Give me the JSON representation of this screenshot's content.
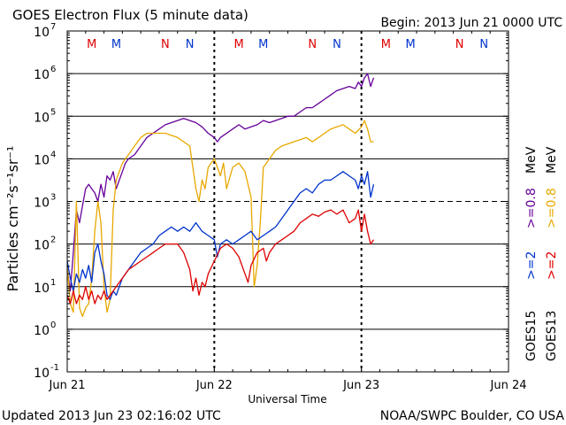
{
  "chart_data": {
    "type": "line",
    "title": "GOES Electron Flux (5 minute data)",
    "begin_label": "Begin: 2013 Jun 21 0000 UTC",
    "xlabel": "Universal Time",
    "ylabel": "Particles cm⁻²s⁻¹sr⁻¹",
    "y_scale": "log",
    "ylim": [
      -1,
      7
    ],
    "x_unit": "hours since 2013 Jun 21 00:00 UTC",
    "xlim": [
      0,
      72
    ],
    "x_ticks": [
      {
        "value": 0,
        "label": "Jun 21"
      },
      {
        "value": 24,
        "label": "Jun 22"
      },
      {
        "value": 48,
        "label": "Jun 23"
      },
      {
        "value": 72,
        "label": "Jun 24"
      }
    ],
    "y_ticks": [
      {
        "exp": 7,
        "label": "10",
        "sup": "7"
      },
      {
        "exp": 6,
        "label": "10",
        "sup": "6"
      },
      {
        "exp": 5,
        "label": "10",
        "sup": "5"
      },
      {
        "exp": 4,
        "label": "10",
        "sup": "4"
      },
      {
        "exp": 3,
        "label": "10",
        "sup": "3"
      },
      {
        "exp": 2,
        "label": "10",
        "sup": "2"
      },
      {
        "exp": 1,
        "label": "10",
        "sup": "1"
      },
      {
        "exp": 0,
        "label": "10",
        "sup": "0"
      },
      {
        "exp": -1,
        "label": "10",
        "sup": "-1"
      }
    ],
    "threshold_exp": 3,
    "markers": [
      {
        "hour": 4.0,
        "label": "M",
        "color": "#dd0000"
      },
      {
        "hour": 8.0,
        "label": "M",
        "color": "#0033cc"
      },
      {
        "hour": 16.0,
        "label": "N",
        "color": "#dd0000"
      },
      {
        "hour": 20.0,
        "label": "N",
        "color": "#0033cc"
      },
      {
        "hour": 28.0,
        "label": "M",
        "color": "#dd0000"
      },
      {
        "hour": 32.0,
        "label": "M",
        "color": "#0033cc"
      },
      {
        "hour": 40.0,
        "label": "N",
        "color": "#dd0000"
      },
      {
        "hour": 44.0,
        "label": "N",
        "color": "#0033cc"
      },
      {
        "hour": 52.0,
        "label": "M",
        "color": "#dd0000"
      },
      {
        "hour": 56.0,
        "label": "M",
        "color": "#0033cc"
      },
      {
        "hour": 64.0,
        "label": "N",
        "color": "#dd0000"
      },
      {
        "hour": 68.0,
        "label": "N",
        "color": "#0033cc"
      }
    ],
    "right_legend": {
      "goes15": "GOES15",
      "goes13": "GOES13",
      "g15_ge2": ">=2",
      "g15_ge08": ">=0.8",
      "g13_ge2": ">=2",
      "g13_ge08": ">=0.8",
      "mev1": "MeV",
      "mev2": "MeV"
    },
    "series": [
      {
        "name": "GOES15 >=0.8 MeV",
        "color": "#660099",
        "points": [
          [
            0,
            1.4
          ],
          [
            0.5,
            0.9
          ],
          [
            1,
            1.8
          ],
          [
            1.5,
            2.8
          ],
          [
            2,
            2.5
          ],
          [
            2.5,
            2.9
          ],
          [
            3,
            3.3
          ],
          [
            3.5,
            3.4
          ],
          [
            4,
            3.3
          ],
          [
            4.5,
            3.2
          ],
          [
            5,
            3.0
          ],
          [
            5.5,
            3.4
          ],
          [
            6,
            3.1
          ],
          [
            6.5,
            3.6
          ],
          [
            7,
            3.5
          ],
          [
            7.5,
            3.7
          ],
          [
            8,
            3.3
          ],
          [
            8.5,
            3.5
          ],
          [
            9,
            3.7
          ],
          [
            9.5,
            3.9
          ],
          [
            10,
            4.0
          ],
          [
            11,
            4.1
          ],
          [
            12,
            4.3
          ],
          [
            13,
            4.5
          ],
          [
            14,
            4.6
          ],
          [
            15,
            4.7
          ],
          [
            16,
            4.8
          ],
          [
            17,
            4.85
          ],
          [
            18,
            4.9
          ],
          [
            19,
            4.95
          ],
          [
            20,
            4.9
          ],
          [
            21,
            4.85
          ],
          [
            22,
            4.75
          ],
          [
            23,
            4.6
          ],
          [
            24,
            4.5
          ],
          [
            24.5,
            4.4
          ],
          [
            25,
            4.5
          ],
          [
            26,
            4.6
          ],
          [
            27,
            4.7
          ],
          [
            28,
            4.8
          ],
          [
            29,
            4.7
          ],
          [
            30,
            4.75
          ],
          [
            31,
            4.8
          ],
          [
            32,
            4.9
          ],
          [
            33,
            4.85
          ],
          [
            34,
            4.9
          ],
          [
            35,
            4.95
          ],
          [
            36,
            5.0
          ],
          [
            37,
            5.0
          ],
          [
            38,
            5.1
          ],
          [
            39,
            5.2
          ],
          [
            40,
            5.2
          ],
          [
            41,
            5.3
          ],
          [
            42,
            5.4
          ],
          [
            43,
            5.5
          ],
          [
            44,
            5.6
          ],
          [
            45,
            5.65
          ],
          [
            46,
            5.7
          ],
          [
            47,
            5.65
          ],
          [
            47.5,
            5.8
          ],
          [
            48,
            5.7
          ],
          [
            48.5,
            5.9
          ],
          [
            49,
            6.0
          ],
          [
            49.5,
            5.7
          ],
          [
            50,
            5.9
          ]
        ]
      },
      {
        "name": "GOES13 >=0.8 MeV",
        "color": "#e8a800",
        "points": [
          [
            0,
            1.5
          ],
          [
            0.5,
            0.6
          ],
          [
            1,
            0.4
          ],
          [
            1.5,
            3.0
          ],
          [
            2,
            0.5
          ],
          [
            2.5,
            0.3
          ],
          [
            3,
            0.5
          ],
          [
            3.5,
            0.6
          ],
          [
            4,
            1.2
          ],
          [
            4.5,
            2.3
          ],
          [
            5,
            3.0
          ],
          [
            5.5,
            2.5
          ],
          [
            6,
            1.0
          ],
          [
            6.5,
            0.4
          ],
          [
            7,
            0.7
          ],
          [
            7.5,
            2.8
          ],
          [
            8,
            3.5
          ],
          [
            9,
            3.9
          ],
          [
            10,
            4.1
          ],
          [
            11,
            4.3
          ],
          [
            12,
            4.5
          ],
          [
            13,
            4.6
          ],
          [
            14,
            4.6
          ],
          [
            15,
            4.6
          ],
          [
            16,
            4.6
          ],
          [
            17,
            4.55
          ],
          [
            18,
            4.5
          ],
          [
            19,
            4.4
          ],
          [
            20,
            4.3
          ],
          [
            21,
            3.3
          ],
          [
            21.5,
            3.0
          ],
          [
            22,
            3.5
          ],
          [
            22.5,
            3.3
          ],
          [
            23,
            3.8
          ],
          [
            24,
            4.0
          ],
          [
            25,
            3.6
          ],
          [
            25.5,
            3.9
          ],
          [
            26,
            3.3
          ],
          [
            27,
            3.8
          ],
          [
            28,
            3.9
          ],
          [
            29,
            3.7
          ],
          [
            30,
            3.1
          ],
          [
            30.5,
            1.0
          ],
          [
            31,
            1.5
          ],
          [
            31.5,
            2.5
          ],
          [
            32,
            3.8
          ],
          [
            33,
            4.0
          ],
          [
            34,
            4.2
          ],
          [
            35,
            4.3
          ],
          [
            36,
            4.35
          ],
          [
            37,
            4.4
          ],
          [
            38,
            4.45
          ],
          [
            39,
            4.5
          ],
          [
            40,
            4.4
          ],
          [
            41,
            4.5
          ],
          [
            42,
            4.6
          ],
          [
            43,
            4.7
          ],
          [
            44,
            4.75
          ],
          [
            45,
            4.8
          ],
          [
            46,
            4.7
          ],
          [
            47,
            4.6
          ],
          [
            48,
            4.75
          ],
          [
            48.5,
            4.9
          ],
          [
            49,
            4.7
          ],
          [
            49.5,
            4.4
          ],
          [
            50,
            4.4
          ]
        ]
      },
      {
        "name": "GOES15 >=2 MeV",
        "color": "#0033cc",
        "points": [
          [
            0,
            1.6
          ],
          [
            0.5,
            1.2
          ],
          [
            1,
            0.9
          ],
          [
            1.5,
            1.3
          ],
          [
            2,
            1.1
          ],
          [
            2.5,
            1.4
          ],
          [
            3,
            1.2
          ],
          [
            3.5,
            1.5
          ],
          [
            4,
            1.1
          ],
          [
            4.5,
            1.8
          ],
          [
            5,
            2.0
          ],
          [
            5.5,
            1.6
          ],
          [
            6,
            1.3
          ],
          [
            6.5,
            0.8
          ],
          [
            7,
            0.7
          ],
          [
            7.5,
            0.9
          ],
          [
            8,
            0.8
          ],
          [
            8.5,
            1.0
          ],
          [
            9,
            1.2
          ],
          [
            10,
            1.4
          ],
          [
            11,
            1.6
          ],
          [
            12,
            1.8
          ],
          [
            13,
            1.9
          ],
          [
            14,
            2.0
          ],
          [
            15,
            2.2
          ],
          [
            16,
            2.3
          ],
          [
            17,
            2.4
          ],
          [
            18,
            2.3
          ],
          [
            19,
            2.4
          ],
          [
            20,
            2.3
          ],
          [
            21,
            2.5
          ],
          [
            22,
            2.3
          ],
          [
            23,
            2.2
          ],
          [
            24,
            2.1
          ],
          [
            24.5,
            1.7
          ],
          [
            25,
            2.0
          ],
          [
            26,
            2.1
          ],
          [
            27,
            2.0
          ],
          [
            28,
            2.1
          ],
          [
            29,
            2.2
          ],
          [
            30,
            2.3
          ],
          [
            31,
            2.1
          ],
          [
            32,
            2.2
          ],
          [
            33,
            2.3
          ],
          [
            34,
            2.4
          ],
          [
            35,
            2.6
          ],
          [
            36,
            2.8
          ],
          [
            37,
            3.0
          ],
          [
            38,
            3.2
          ],
          [
            39,
            3.3
          ],
          [
            40,
            3.2
          ],
          [
            41,
            3.4
          ],
          [
            42,
            3.5
          ],
          [
            43,
            3.5
          ],
          [
            44,
            3.6
          ],
          [
            45,
            3.7
          ],
          [
            46,
            3.6
          ],
          [
            47,
            3.5
          ],
          [
            47.5,
            3.3
          ],
          [
            48,
            3.6
          ],
          [
            48.5,
            3.4
          ],
          [
            49,
            3.7
          ],
          [
            49.5,
            3.1
          ],
          [
            50,
            3.4
          ]
        ]
      },
      {
        "name": "GOES13 >=2 MeV",
        "color": "#dd0000",
        "points": [
          [
            0,
            0.8
          ],
          [
            0.5,
            0.6
          ],
          [
            1,
            0.9
          ],
          [
            1.5,
            0.6
          ],
          [
            2,
            0.8
          ],
          [
            2.5,
            0.7
          ],
          [
            3,
            1.0
          ],
          [
            3.5,
            0.7
          ],
          [
            4,
            0.9
          ],
          [
            4.5,
            0.6
          ],
          [
            5,
            0.8
          ],
          [
            5.5,
            0.7
          ],
          [
            6,
            0.9
          ],
          [
            6.5,
            0.7
          ],
          [
            7,
            0.8
          ],
          [
            7.5,
            0.9
          ],
          [
            8,
            1.0
          ],
          [
            9,
            1.2
          ],
          [
            10,
            1.4
          ],
          [
            11,
            1.5
          ],
          [
            12,
            1.6
          ],
          [
            13,
            1.7
          ],
          [
            14,
            1.8
          ],
          [
            15,
            1.9
          ],
          [
            16,
            2.0
          ],
          [
            17,
            2.0
          ],
          [
            18,
            2.0
          ],
          [
            19,
            1.8
          ],
          [
            20,
            1.4
          ],
          [
            20.5,
            0.9
          ],
          [
            21,
            1.2
          ],
          [
            21.5,
            0.8
          ],
          [
            22,
            1.1
          ],
          [
            22.5,
            1.0
          ],
          [
            23,
            1.3
          ],
          [
            24,
            1.6
          ],
          [
            25,
            1.9
          ],
          [
            26,
            2.0
          ],
          [
            27,
            1.9
          ],
          [
            28,
            1.7
          ],
          [
            29,
            1.3
          ],
          [
            29.5,
            1.1
          ],
          [
            30,
            1.5
          ],
          [
            31,
            1.8
          ],
          [
            32,
            1.9
          ],
          [
            32.5,
            1.6
          ],
          [
            33,
            1.8
          ],
          [
            34,
            2.0
          ],
          [
            35,
            2.1
          ],
          [
            36,
            2.2
          ],
          [
            37,
            2.3
          ],
          [
            38,
            2.5
          ],
          [
            39,
            2.6
          ],
          [
            40,
            2.7
          ],
          [
            41,
            2.65
          ],
          [
            42,
            2.75
          ],
          [
            43,
            2.8
          ],
          [
            44,
            2.7
          ],
          [
            45,
            2.8
          ],
          [
            46,
            2.5
          ],
          [
            47,
            2.6
          ],
          [
            47.5,
            2.8
          ],
          [
            48,
            2.3
          ],
          [
            48.5,
            2.7
          ],
          [
            49,
            2.3
          ],
          [
            49.5,
            2.0
          ],
          [
            50,
            2.1
          ]
        ]
      }
    ],
    "footer_left": "Updated 2013 Jun 23 02:16:02 UTC",
    "footer_right": "NOAA/SWPC Boulder, CO USA"
  }
}
